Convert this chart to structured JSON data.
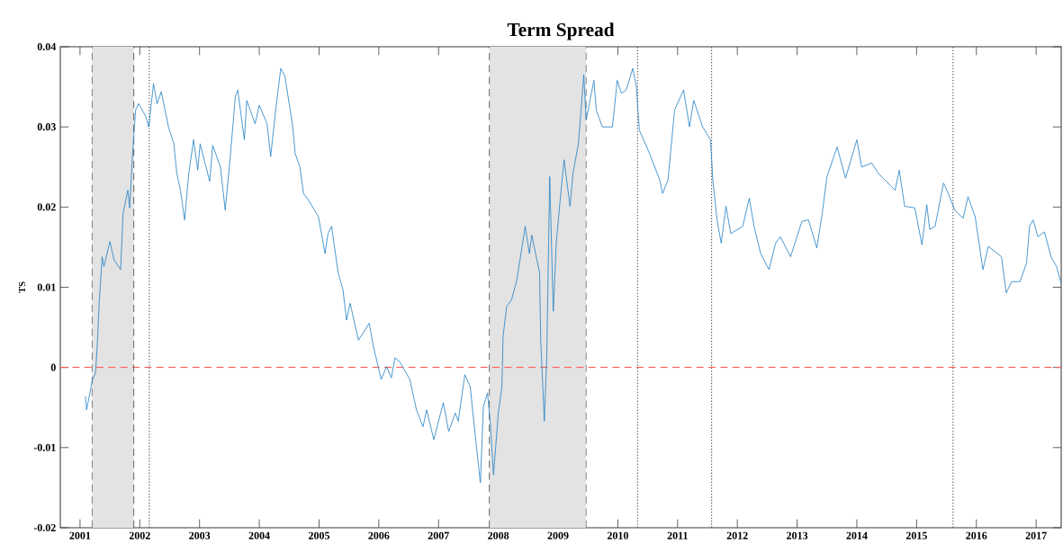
{
  "chart_data": {
    "type": "line",
    "title": "Term Spread",
    "ylabel": "TS",
    "xlim": [
      2000.67,
      2017.42
    ],
    "ylim": [
      -0.02,
      0.04
    ],
    "xticks": [
      2001,
      2002,
      2003,
      2004,
      2005,
      2006,
      2007,
      2008,
      2009,
      2010,
      2011,
      2012,
      2013,
      2014,
      2015,
      2016,
      2017
    ],
    "yticks": [
      -0.02,
      -0.01,
      0,
      0.01,
      0.02,
      0.03,
      0.04
    ],
    "bands": [
      {
        "axis": "x",
        "from": 2001.2,
        "to": 2001.9,
        "color": "#e3e3e3"
      },
      {
        "axis": "x",
        "from": 2007.85,
        "to": 2009.47,
        "color": "#e3e3e3"
      }
    ],
    "ref_lines": [
      {
        "axis": "y",
        "value": 0,
        "color": "#ff5a5a",
        "line_style": "dashed"
      },
      {
        "axis": "x",
        "value": 2001.2,
        "color": "#555555",
        "line_style": "dashed"
      },
      {
        "axis": "x",
        "value": 2001.9,
        "color": "#555555",
        "line_style": "dashed"
      },
      {
        "axis": "x",
        "value": 2007.85,
        "color": "#555555",
        "line_style": "dashed"
      },
      {
        "axis": "x",
        "value": 2009.47,
        "color": "#555555",
        "line_style": "dashed"
      },
      {
        "axis": "x",
        "value": 2002.16,
        "color": "#333333",
        "line_style": "dotted"
      },
      {
        "axis": "x",
        "value": 2010.33,
        "color": "#333333",
        "line_style": "dotted"
      },
      {
        "axis": "x",
        "value": 2011.57,
        "color": "#333333",
        "line_style": "dotted"
      },
      {
        "axis": "x",
        "value": 2015.61,
        "color": "#333333",
        "line_style": "dotted"
      }
    ],
    "series": [
      {
        "color": "#1f7fc4",
        "x": [
          2001.09,
          2001.11,
          2001.21,
          2001.26,
          2001.29,
          2001.32,
          2001.37,
          2001.4,
          2001.5,
          2001.57,
          2001.68,
          2001.72,
          2001.8,
          2001.83,
          2001.88,
          2001.93,
          2001.98,
          2002.1,
          2002.15,
          2002.23,
          2002.29,
          2002.36,
          2002.48,
          2002.57,
          2002.62,
          2002.68,
          2002.75,
          2002.82,
          2002.9,
          2002.97,
          2003.01,
          2003.17,
          2003.22,
          2003.35,
          2003.43,
          2003.51,
          2003.6,
          2003.64,
          2003.75,
          2003.79,
          2003.93,
          2004.0,
          2004.13,
          2004.19,
          2004.28,
          2004.36,
          2004.43,
          2004.56,
          2004.6,
          2004.68,
          2004.74,
          2004.82,
          2004.99,
          2005.1,
          2005.15,
          2005.21,
          2005.32,
          2005.4,
          2005.46,
          2005.52,
          2005.66,
          2005.84,
          2005.91,
          2006.04,
          2006.13,
          2006.21,
          2006.27,
          2006.35,
          2006.52,
          2006.63,
          2006.74,
          2006.8,
          2006.92,
          2007.08,
          2007.17,
          2007.28,
          2007.33,
          2007.44,
          2007.53,
          2007.61,
          2007.7,
          2007.75,
          2007.82,
          2007.87,
          2007.92,
          2008.0,
          2008.06,
          2008.08,
          2008.14,
          2008.22,
          2008.31,
          2008.45,
          2008.52,
          2008.56,
          2008.69,
          2008.71,
          2008.77,
          2008.81,
          2008.86,
          2008.92,
          2008.97,
          2009.03,
          2009.1,
          2009.2,
          2009.25,
          2009.34,
          2009.43,
          2009.47,
          2009.6,
          2009.64,
          2009.74,
          2009.91,
          2009.99,
          2010.06,
          2010.14,
          2010.25,
          2010.31,
          2010.36,
          2010.53,
          2010.7,
          2010.75,
          2010.84,
          2010.95,
          2011.1,
          2011.2,
          2011.27,
          2011.42,
          2011.55,
          2011.59,
          2011.66,
          2011.73,
          2011.81,
          2011.89,
          2012.09,
          2012.2,
          2012.28,
          2012.39,
          2012.53,
          2012.64,
          2012.72,
          2012.89,
          2013.08,
          2013.19,
          2013.33,
          2013.42,
          2013.5,
          2013.67,
          2013.81,
          2014.0,
          2014.08,
          2014.25,
          2014.36,
          2014.64,
          2014.71,
          2014.8,
          2014.97,
          2015.09,
          2015.17,
          2015.22,
          2015.31,
          2015.45,
          2015.53,
          2015.64,
          2015.78,
          2015.86,
          2015.98,
          2016.11,
          2016.2,
          2016.42,
          2016.5,
          2016.59,
          2016.73,
          2016.84,
          2016.89,
          2016.95,
          2017.03,
          2017.14,
          2017.25,
          2017.34,
          2017.42
        ],
        "values": [
          -0.0036,
          -0.0053,
          -0.0015,
          -0.0007,
          0.003,
          0.008,
          0.0138,
          0.0126,
          0.0157,
          0.0134,
          0.0122,
          0.0192,
          0.0221,
          0.0199,
          0.0267,
          0.0321,
          0.0329,
          0.0313,
          0.03,
          0.0354,
          0.0329,
          0.0344,
          0.03,
          0.0279,
          0.0242,
          0.0221,
          0.0184,
          0.0242,
          0.0284,
          0.0246,
          0.0279,
          0.0232,
          0.0277,
          0.025,
          0.0196,
          0.0259,
          0.0338,
          0.0346,
          0.0284,
          0.0333,
          0.0304,
          0.0327,
          0.0304,
          0.0263,
          0.0325,
          0.0373,
          0.0363,
          0.03,
          0.0267,
          0.025,
          0.0217,
          0.0209,
          0.0188,
          0.0142,
          0.0167,
          0.0176,
          0.0118,
          0.0097,
          0.0059,
          0.008,
          0.0034,
          0.0055,
          0.0026,
          -0.0015,
          0.0001,
          -0.0013,
          0.0012,
          0.0007,
          -0.0015,
          -0.0053,
          -0.0074,
          -0.0053,
          -0.009,
          -0.0044,
          -0.008,
          -0.0057,
          -0.0067,
          -0.0009,
          -0.0024,
          -0.0082,
          -0.0144,
          -0.0049,
          -0.0032,
          -0.0074,
          -0.0134,
          -0.0057,
          -0.0024,
          0.0039,
          0.0076,
          0.0084,
          0.0109,
          0.0176,
          0.0142,
          0.0165,
          0.0118,
          0.0034,
          -0.0067,
          0.001,
          0.0238,
          0.007,
          0.0155,
          0.0205,
          0.0259,
          0.0201,
          0.0242,
          0.0279,
          0.0365,
          0.0309,
          0.0358,
          0.0321,
          0.03,
          0.03,
          0.0358,
          0.0342,
          0.0346,
          0.0373,
          0.035,
          0.0296,
          0.0267,
          0.0234,
          0.0217,
          0.0234,
          0.0321,
          0.0346,
          0.03,
          0.0333,
          0.03,
          0.0284,
          0.0234,
          0.0184,
          0.0155,
          0.0201,
          0.0167,
          0.0176,
          0.0211,
          0.0176,
          0.0142,
          0.0122,
          0.0155,
          0.0163,
          0.0138,
          0.0182,
          0.0184,
          0.0149,
          0.0192,
          0.0238,
          0.0275,
          0.0236,
          0.0284,
          0.025,
          0.0255,
          0.0242,
          0.0221,
          0.0246,
          0.0201,
          0.0199,
          0.0153,
          0.0203,
          0.0172,
          0.0176,
          0.023,
          0.0217,
          0.0196,
          0.0186,
          0.0213,
          0.0188,
          0.0122,
          0.0151,
          0.0138,
          0.0093,
          0.0107,
          0.0107,
          0.013,
          0.0176,
          0.0184,
          0.0163,
          0.0169,
          0.0138,
          0.0126,
          0.0105
        ]
      }
    ]
  }
}
